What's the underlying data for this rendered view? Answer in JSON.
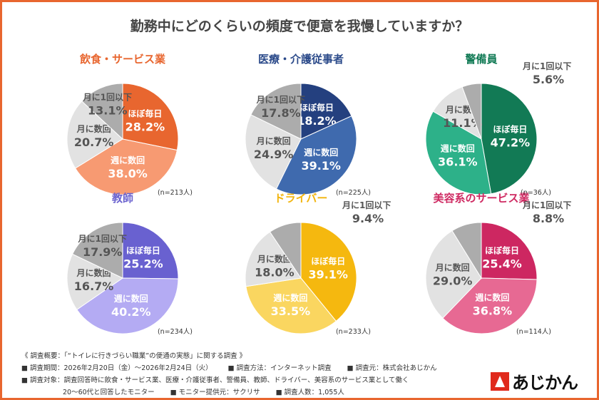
{
  "title": "勤務中にどのくらいの頻度で便意を我慢していますか？",
  "chart_data": [
    {
      "type": "pie",
      "title": "飲食・サービス業",
      "color": "#e8662f",
      "n_label": "(n=213人)",
      "categories": [
        "ほぼ毎日",
        "週に数回",
        "月に数回",
        "月に1回以下"
      ],
      "values": [
        28.2,
        38.0,
        20.7,
        13.1
      ],
      "colors": [
        "#e8662f",
        "#f79a72",
        "#e2e2e2",
        "#acacac"
      ]
    },
    {
      "type": "pie",
      "title": "医療・介護従事者",
      "color": "#2b4a8a",
      "n_label": "(n=225人)",
      "categories": [
        "ほぼ毎日",
        "週に数回",
        "月に数回",
        "月に1回以下"
      ],
      "values": [
        18.2,
        39.1,
        24.9,
        17.8
      ],
      "colors": [
        "#24407f",
        "#3f6aae",
        "#e2e2e2",
        "#acacac"
      ]
    },
    {
      "type": "pie",
      "title": "警備員",
      "color": "#117a55",
      "n_label": "(n=36人)",
      "categories": [
        "ほぼ毎日",
        "週に数回",
        "月に数回",
        "月に1回以下"
      ],
      "values": [
        47.2,
        36.1,
        11.1,
        5.6
      ],
      "colors": [
        "#127a55",
        "#2db189",
        "#e2e2e2",
        "#acacac"
      ]
    },
    {
      "type": "pie",
      "title": "教師",
      "color": "#6b63cf",
      "n_label": "(n=234人)",
      "categories": [
        "ほぼ毎日",
        "週に数回",
        "月に数回",
        "月に1回以下"
      ],
      "values": [
        25.2,
        40.2,
        16.7,
        17.9
      ],
      "colors": [
        "#6961d0",
        "#b4abf3",
        "#e2e2e2",
        "#acacac"
      ]
    },
    {
      "type": "pie",
      "title": "ドライバー",
      "color": "#f2b40c",
      "n_label": "(n=233人)",
      "categories": [
        "ほぼ毎日",
        "週に数回",
        "月に数回",
        "月に1回以下"
      ],
      "values": [
        39.1,
        33.5,
        18.0,
        9.4
      ],
      "colors": [
        "#f5b80f",
        "#fad660",
        "#e2e2e2",
        "#acacac"
      ]
    },
    {
      "type": "pie",
      "title": "美容系のサービス業",
      "color": "#cf2a62",
      "n_label": "(n=114人)",
      "categories": [
        "ほぼ毎日",
        "週に数回",
        "月に数回",
        "月に1回以下"
      ],
      "values": [
        25.4,
        36.8,
        29.0,
        8.8
      ],
      "colors": [
        "#cd2761",
        "#e76993",
        "#e2e2e2",
        "#acacac"
      ]
    }
  ],
  "footer": {
    "heading": "《 調査概要：「“トイレに行きづらい職業”の便通の実態」に関する調査 》",
    "period": "■ 調査期間：2026年2月20日（金）～2026年2月24日（火）",
    "method": "■ 調査方法：インターネット調査",
    "source": "■ 調査元：株式会社あじかん",
    "target": "■ 調査対象：調査回答時に飲食・サービス業、医療・介護従事者、警備員、教師、ドライバー、美容系のサービス業として働く",
    "target2": "20～60代と回答したモニター",
    "provider": "■ モニター提供元：サクリサ",
    "count": "■ 調査人数：1,055人"
  },
  "logo": "あじかん"
}
